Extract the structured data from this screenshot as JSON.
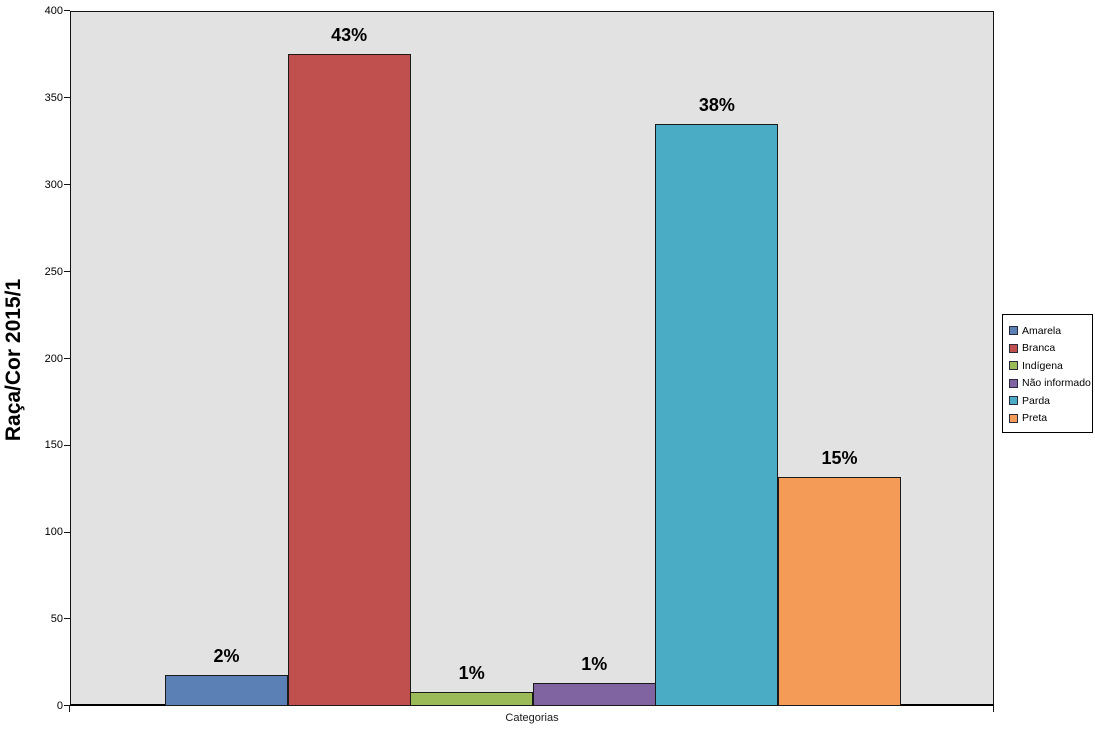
{
  "chart_data": {
    "type": "bar",
    "title": "",
    "ylabel": "Raça/Cor 2015/1",
    "xlabel": "Categorias",
    "ylim": [
      0,
      400
    ],
    "ytick_step": 50,
    "ytick_labels": [
      "0",
      "50",
      "100",
      "150",
      "200",
      "250",
      "300",
      "350",
      "400"
    ],
    "grid": false,
    "plot_bg_color": "#e2e2e2",
    "legend_position": "right",
    "categories": [
      "Amarela",
      "Branca",
      "Indígena",
      "Não informado",
      "Parda",
      "Preta"
    ],
    "series": [
      {
        "name": "Amarela",
        "value": 18,
        "label": "2%",
        "color": "#5a80b6"
      },
      {
        "name": "Branca",
        "value": 375,
        "label": "43%",
        "color": "#c0504d"
      },
      {
        "name": "Indígena",
        "value": 8,
        "label": "1%",
        "color": "#9bbb59"
      },
      {
        "name": "Não informado",
        "value": 13,
        "label": "1%",
        "color": "#8064a2"
      },
      {
        "name": "Parda",
        "value": 335,
        "label": "38%",
        "color": "#4bacc6"
      },
      {
        "name": "Preta",
        "value": 132,
        "label": "15%",
        "color": "#f49b57"
      }
    ]
  }
}
